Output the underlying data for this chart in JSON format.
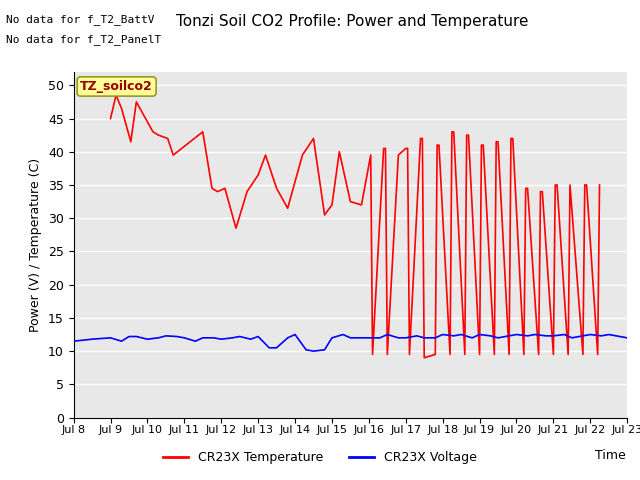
{
  "title": "Tonzi Soil CO2 Profile: Power and Temperature",
  "ylabel": "Power (V) / Temperature (C)",
  "xlabel": "Time",
  "ylim": [
    0,
    52
  ],
  "yticks": [
    0,
    5,
    10,
    15,
    20,
    25,
    30,
    35,
    40,
    45,
    50
  ],
  "xtick_labels": [
    "Jul 8",
    "Jul 9",
    "Jul 10",
    "Jul 11",
    "Jul 12",
    "Jul 13",
    "Jul 14",
    "Jul 15",
    "Jul 16",
    "Jul 17",
    "Jul 18",
    "Jul 19",
    "Jul 20",
    "Jul 21",
    "Jul 22",
    "Jul 23"
  ],
  "no_data_text1": "No data for f_T2_BattV",
  "no_data_text2": "No data for f_T2_PanelT",
  "legend_label_box": "TZ_soilco2",
  "legend_red": "CR23X Temperature",
  "legend_blue": "CR23X Voltage",
  "temp_color": "#ff0000",
  "volt_color": "#0000ff",
  "bg_color": "#e8e8e8",
  "grid_color": "#ffffff",
  "temp_x": [
    1.0,
    1.15,
    1.3,
    1.55,
    1.7,
    1.85,
    2.0,
    2.15,
    2.3,
    2.55,
    2.7,
    3.5,
    3.75,
    3.9,
    4.1,
    4.4,
    4.7,
    5.0,
    5.2,
    5.5,
    5.8,
    6.2,
    6.5,
    6.8,
    7.0,
    7.2,
    7.5,
    7.8,
    8.0,
    8.05,
    8.1,
    8.4,
    8.45,
    8.5,
    8.8,
    9.0,
    9.05,
    9.1,
    9.4,
    9.45,
    9.5,
    9.8,
    9.85,
    9.9,
    10.2,
    10.25,
    10.3,
    10.6,
    10.65,
    10.7,
    11.0,
    11.05,
    11.1,
    11.4,
    11.45,
    11.5,
    11.8,
    11.85,
    11.9,
    12.2,
    12.25,
    12.3,
    12.6,
    12.65,
    12.7,
    13.0,
    13.05,
    13.1,
    13.4,
    13.45,
    13.8,
    13.85,
    13.9,
    14.2,
    14.25
  ],
  "temp_y": [
    45.0,
    48.5,
    46.5,
    41.5,
    47.5,
    46.0,
    44.5,
    43.0,
    42.5,
    42.0,
    39.5,
    43.0,
    34.5,
    34.0,
    34.5,
    28.5,
    34.0,
    36.5,
    39.5,
    34.5,
    31.5,
    39.5,
    42.0,
    30.5,
    32.0,
    40.0,
    32.5,
    32.0,
    38.0,
    39.5,
    9.5,
    40.5,
    40.5,
    9.5,
    39.5,
    40.5,
    40.5,
    9.5,
    42.0,
    42.0,
    9.0,
    9.5,
    41.0,
    41.0,
    9.5,
    43.0,
    43.0,
    9.5,
    42.5,
    42.5,
    9.5,
    41.0,
    41.0,
    9.5,
    41.5,
    41.5,
    9.5,
    42.0,
    42.0,
    9.5,
    34.5,
    34.5,
    9.5,
    34.0,
    34.0,
    9.5,
    35.0,
    35.0,
    9.5,
    35.0,
    9.5,
    35.0,
    35.0,
    9.5,
    35.0
  ],
  "volt_x": [
    0.0,
    0.5,
    1.0,
    1.3,
    1.5,
    1.7,
    2.0,
    2.3,
    2.5,
    2.8,
    3.0,
    3.3,
    3.5,
    3.8,
    4.0,
    4.3,
    4.5,
    4.8,
    5.0,
    5.3,
    5.5,
    5.8,
    6.0,
    6.3,
    6.5,
    6.8,
    7.0,
    7.3,
    7.5,
    7.8,
    8.0,
    8.3,
    8.5,
    8.8,
    9.0,
    9.3,
    9.5,
    9.8,
    10.0,
    10.3,
    10.5,
    10.8,
    11.0,
    11.3,
    11.5,
    11.8,
    12.0,
    12.3,
    12.5,
    12.8,
    13.0,
    13.3,
    13.5,
    13.8,
    14.0,
    14.3,
    14.5,
    15.0
  ],
  "volt_y": [
    11.5,
    11.8,
    12.0,
    11.5,
    12.2,
    12.2,
    11.8,
    12.0,
    12.3,
    12.2,
    12.0,
    11.5,
    12.0,
    12.0,
    11.8,
    12.0,
    12.2,
    11.8,
    12.2,
    10.5,
    10.5,
    12.0,
    12.5,
    10.2,
    10.0,
    10.2,
    12.0,
    12.5,
    12.0,
    12.0,
    12.0,
    12.0,
    12.5,
    12.0,
    12.0,
    12.3,
    12.0,
    12.0,
    12.5,
    12.3,
    12.5,
    12.0,
    12.5,
    12.3,
    12.0,
    12.3,
    12.5,
    12.3,
    12.5,
    12.3,
    12.3,
    12.5,
    12.0,
    12.3,
    12.5,
    12.3,
    12.5,
    12.0
  ]
}
